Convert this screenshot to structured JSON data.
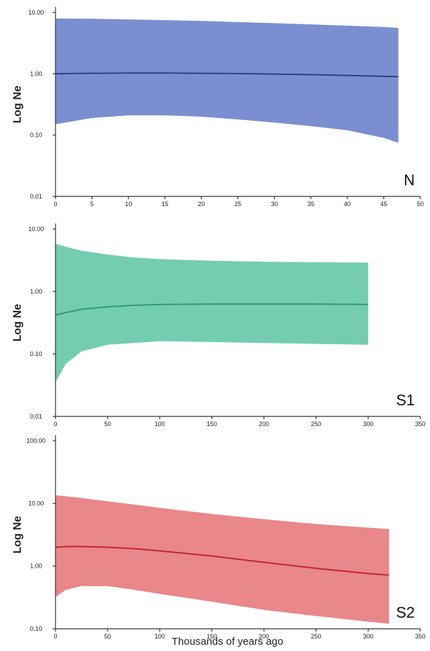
{
  "chart_data": [
    {
      "type": "area",
      "panel_label": "N",
      "ylabel": "Log Ne",
      "xlabel": "",
      "y_scale": "log",
      "ylim": [
        0.01,
        10
      ],
      "xlim": [
        0,
        50
      ],
      "x_ticks": [
        0,
        5,
        10,
        15,
        20,
        25,
        30,
        35,
        40,
        45,
        50
      ],
      "y_ticks": [
        0.01,
        0.1,
        1,
        10
      ],
      "y_tick_labels": [
        "0.01",
        "0.10",
        "1.00",
        "10.00"
      ],
      "color": "#7b8fd0",
      "line_color": "#2d3f8a",
      "series": [
        {
          "x": [
            0,
            5,
            10,
            15,
            20,
            25,
            30,
            35,
            40,
            45,
            47
          ],
          "median": [
            1.0,
            1.02,
            1.03,
            1.03,
            1.02,
            1.01,
            0.99,
            0.97,
            0.94,
            0.91,
            0.9
          ],
          "upper": [
            8.0,
            7.9,
            7.7,
            7.5,
            7.3,
            7.0,
            6.7,
            6.4,
            6.1,
            5.8,
            5.6
          ],
          "lower": [
            0.15,
            0.19,
            0.21,
            0.21,
            0.2,
            0.18,
            0.16,
            0.14,
            0.12,
            0.09,
            0.075
          ]
        }
      ]
    },
    {
      "type": "area",
      "panel_label": "S1",
      "ylabel": "Log Ne",
      "xlabel": "",
      "y_scale": "log",
      "ylim": [
        0.01,
        10
      ],
      "xlim": [
        0,
        350
      ],
      "x_ticks": [
        0,
        50,
        100,
        150,
        200,
        250,
        300,
        350
      ],
      "y_ticks": [
        0.01,
        0.1,
        1,
        10
      ],
      "y_tick_labels": [
        "0.01",
        "0.10",
        "1.00",
        "10.00"
      ],
      "color": "#74cdb0",
      "line_color": "#2e9a73",
      "series": [
        {
          "x": [
            0,
            10,
            25,
            50,
            75,
            100,
            150,
            200,
            250,
            300
          ],
          "median": [
            0.42,
            0.46,
            0.52,
            0.57,
            0.6,
            0.62,
            0.63,
            0.63,
            0.63,
            0.62
          ],
          "upper": [
            5.8,
            5.2,
            4.5,
            3.9,
            3.5,
            3.3,
            3.1,
            3.0,
            2.95,
            2.9
          ],
          "lower": [
            0.035,
            0.07,
            0.11,
            0.14,
            0.15,
            0.16,
            0.155,
            0.15,
            0.145,
            0.14
          ]
        }
      ]
    },
    {
      "type": "area",
      "panel_label": "S2",
      "ylabel": "Log Ne",
      "xlabel": "Thousands of years ago",
      "y_scale": "log",
      "ylim": [
        0.1,
        100
      ],
      "xlim": [
        0,
        350
      ],
      "x_ticks": [
        0,
        50,
        100,
        150,
        200,
        250,
        300,
        350
      ],
      "y_ticks": [
        0.1,
        1,
        10,
        100
      ],
      "y_tick_labels": [
        "0.10",
        "1.00",
        "10.00",
        "100.00"
      ],
      "color": "#e9878a",
      "line_color": "#c0272d",
      "series": [
        {
          "x": [
            0,
            10,
            25,
            50,
            75,
            100,
            150,
            200,
            250,
            300,
            320
          ],
          "median": [
            2.0,
            2.05,
            2.05,
            2.0,
            1.9,
            1.75,
            1.45,
            1.15,
            0.92,
            0.76,
            0.72
          ],
          "upper": [
            13.5,
            13.0,
            12.2,
            10.8,
            9.6,
            8.5,
            6.8,
            5.6,
            4.7,
            4.1,
            3.9
          ],
          "lower": [
            0.32,
            0.42,
            0.48,
            0.48,
            0.42,
            0.36,
            0.27,
            0.2,
            0.16,
            0.13,
            0.12
          ]
        }
      ]
    }
  ]
}
